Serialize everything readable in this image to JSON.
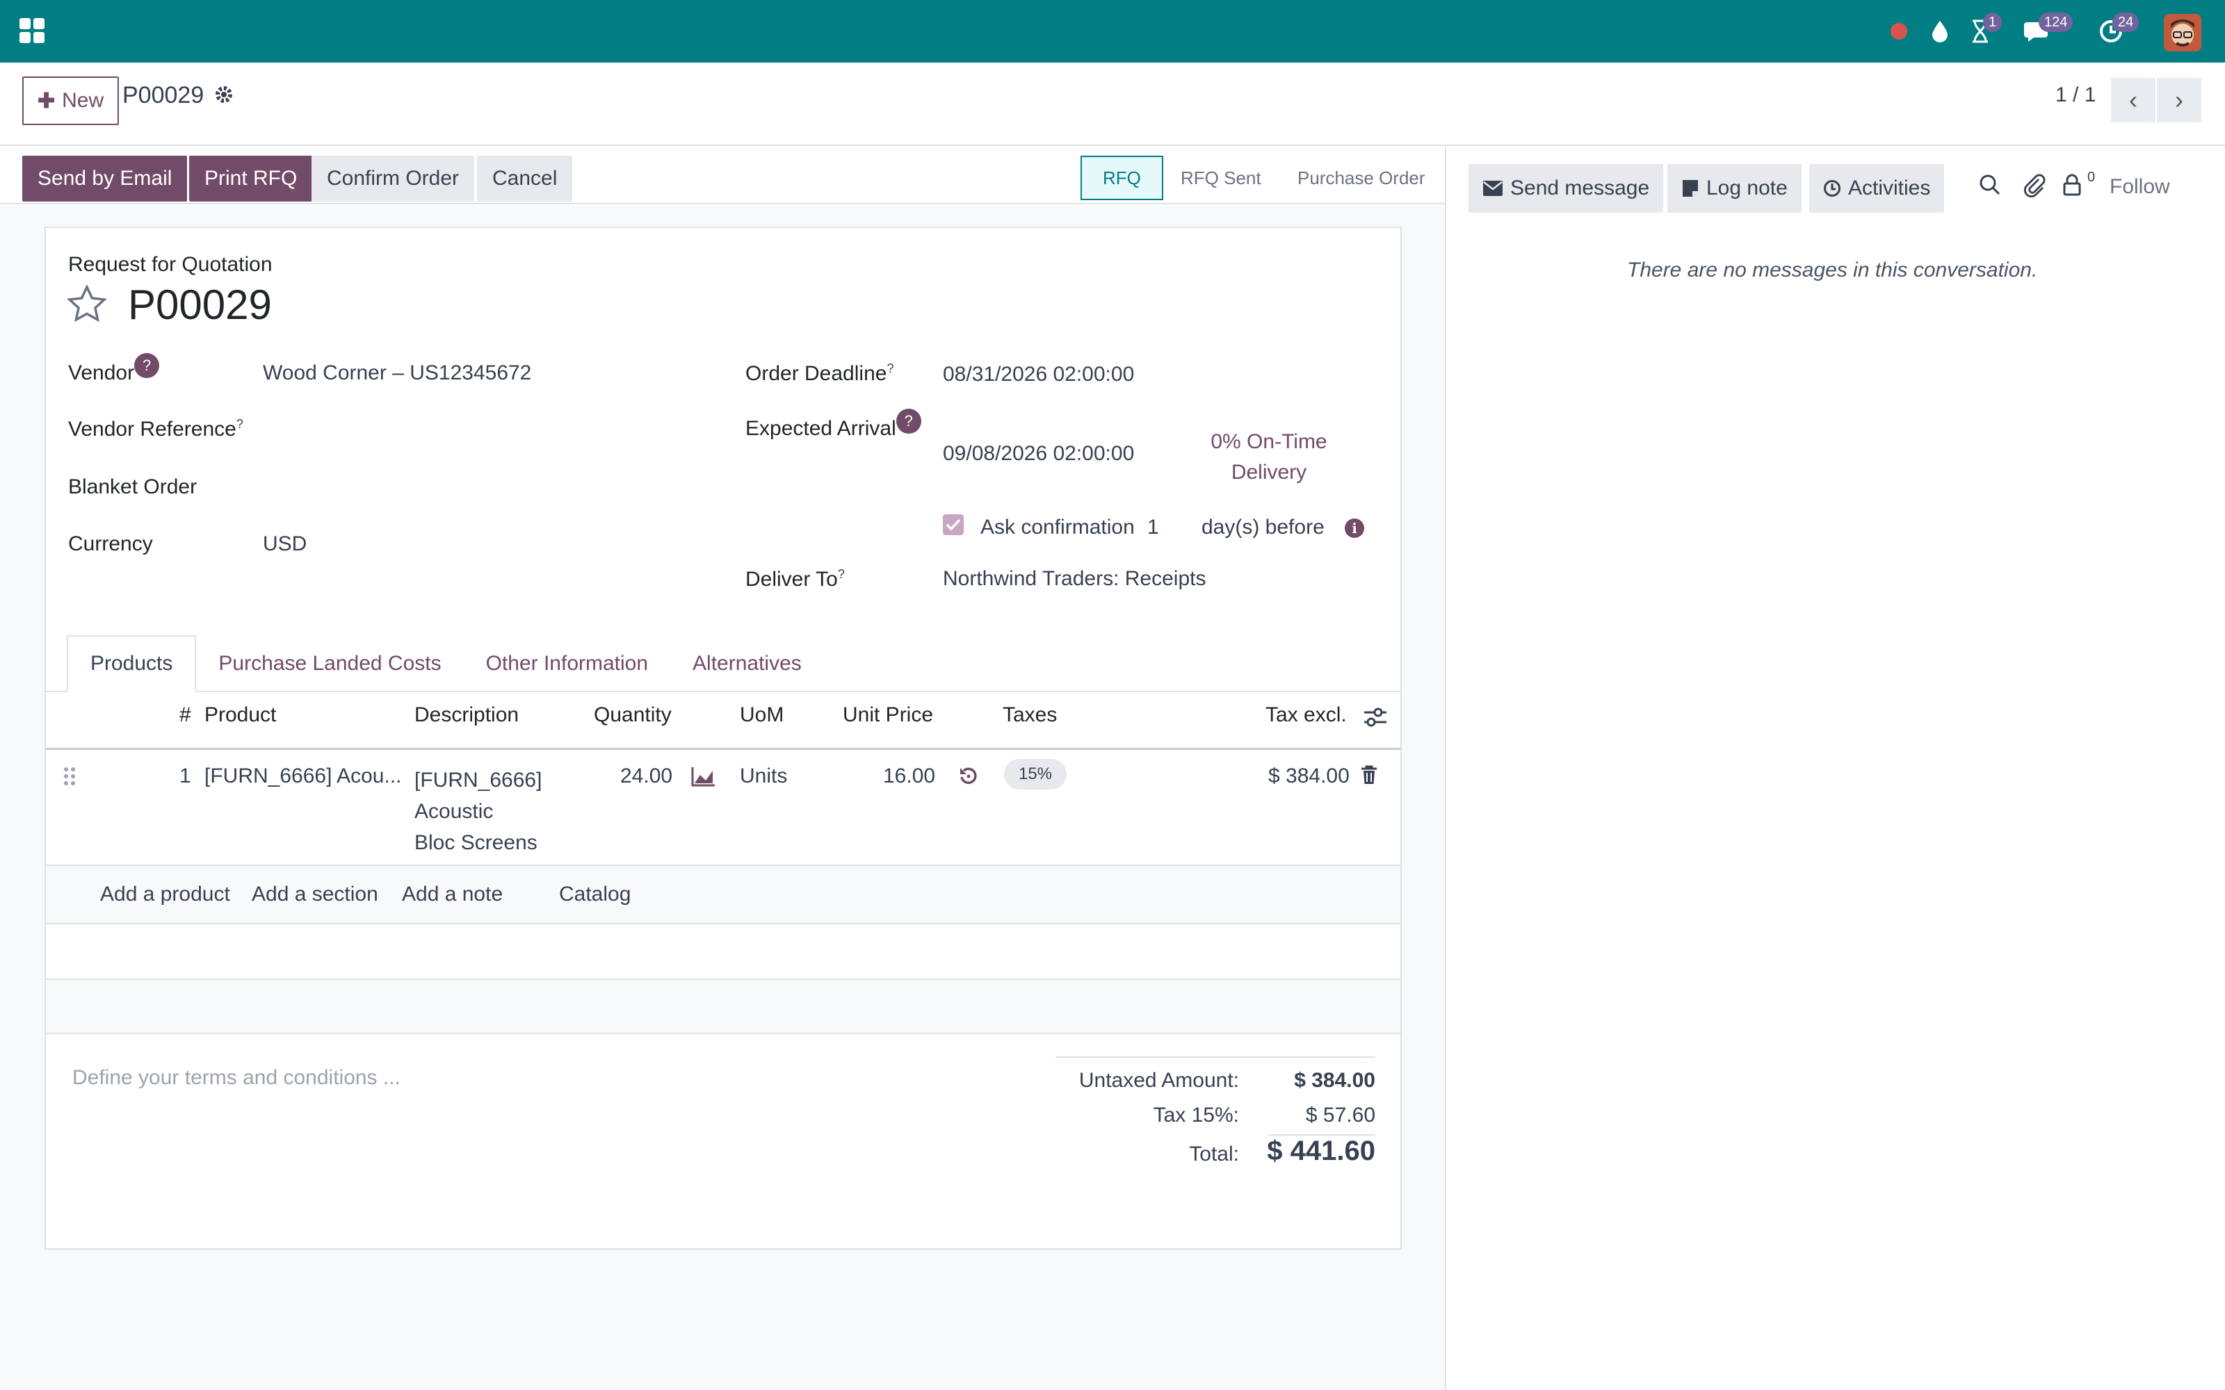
{
  "navbar": {
    "chat_count": "124",
    "activity_count": "24",
    "timer_count": "1",
    "color": "#017e84"
  },
  "control": {
    "new_label": "New",
    "record_title": "P00029",
    "pager": "1 / 1"
  },
  "actions": {
    "send_email": "Send by Email",
    "print_rfq": "Print RFQ",
    "confirm": "Confirm Order",
    "cancel": "Cancel"
  },
  "stages": [
    "RFQ",
    "RFQ Sent",
    "Purchase Order"
  ],
  "form": {
    "doc_type": "Request for Quotation",
    "name": "P00029",
    "vendor_label": "Vendor",
    "vendor_value": "Wood Corner – US12345672",
    "vendor_ref_label": "Vendor Reference",
    "blanket_label": "Blanket Order",
    "currency_label": "Currency",
    "currency_value": "USD",
    "deadline_label": "Order Deadline",
    "deadline_value": "08/31/2026 02:00:00",
    "arrival_label": "Expected Arrival",
    "arrival_value": "09/08/2026 02:00:00",
    "ontime_line1": "0% On-Time",
    "ontime_line2": "Delivery",
    "ask_confirmation": "Ask confirmation",
    "ask_days": "1",
    "days_before": "day(s) before",
    "deliver_label": "Deliver To",
    "deliver_value": "Northwind Traders: Receipts",
    "help_mark": "?"
  },
  "tabs": [
    "Products",
    "Purchase Landed Costs",
    "Other Information",
    "Alternatives"
  ],
  "table": {
    "headers": {
      "num": "#",
      "product": "Product",
      "description": "Description",
      "quantity": "Quantity",
      "uom": "UoM",
      "unit_price": "Unit Price",
      "taxes": "Taxes",
      "tax_excl": "Tax excl."
    },
    "row": {
      "num": "1",
      "product": "[FURN_6666] Acou...",
      "desc1": "[FURN_6666]",
      "desc2": "Acoustic",
      "desc3": "Bloc Screens",
      "quantity": "24.00",
      "uom": "Units",
      "unit_price": "16.00",
      "tax": "15%",
      "subtotal": "$ 384.00"
    },
    "add_product": "Add a product",
    "add_section": "Add a section",
    "add_note": "Add a note",
    "catalog": "Catalog"
  },
  "terms_placeholder": "Define your terms and conditions ...",
  "totals": {
    "untaxed_label": "Untaxed Amount:",
    "untaxed_value": "$ 384.00",
    "tax_label": "Tax 15%:",
    "tax_value": "$ 57.60",
    "total_label": "Total:",
    "total_value": "$ 441.60"
  },
  "chatter": {
    "send_message": "Send message",
    "log_note": "Log note",
    "activities": "Activities",
    "follow": "Follow",
    "follower_count": "0",
    "no_messages": "There are no messages in this conversation."
  }
}
